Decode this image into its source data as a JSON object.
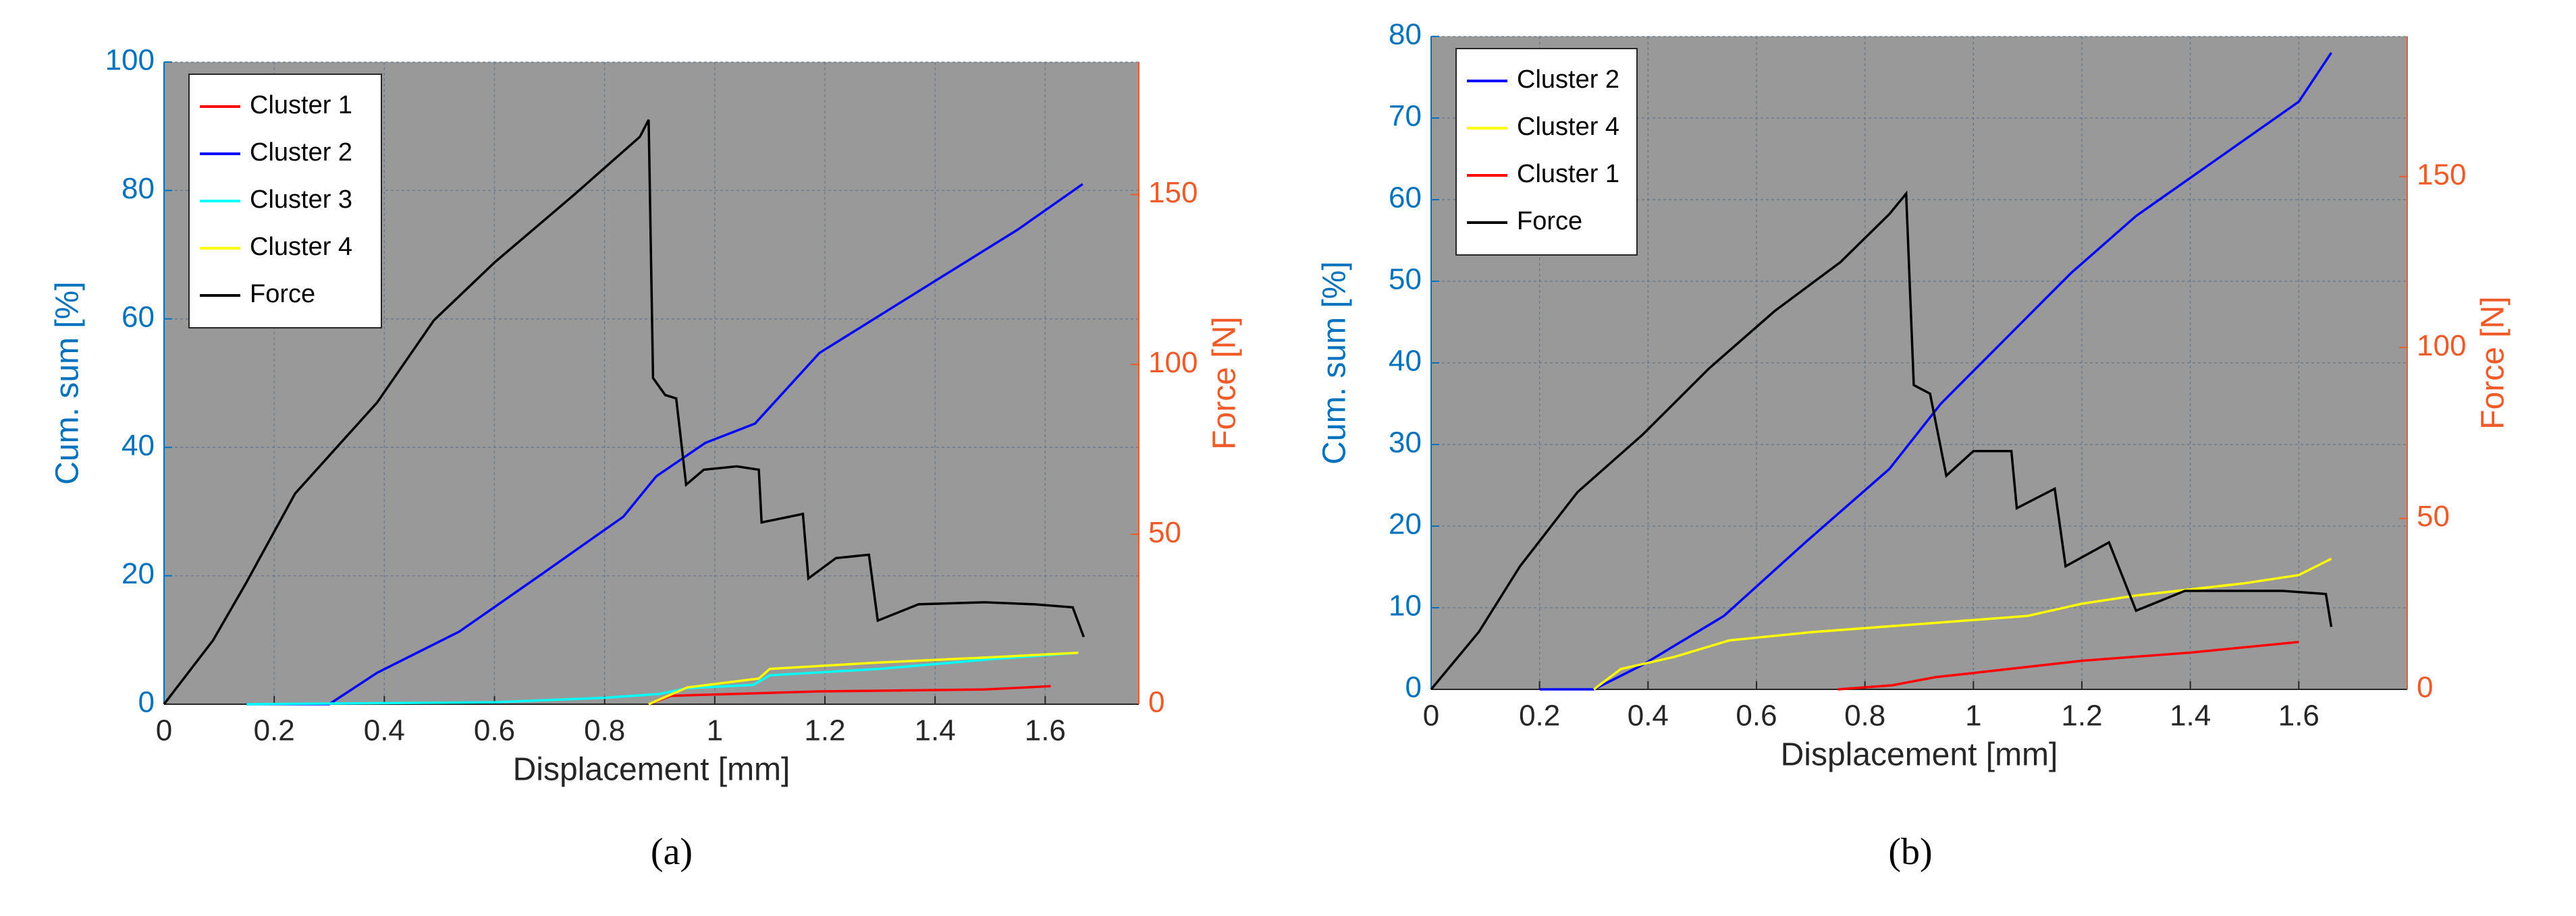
{
  "chart_data": [
    {
      "type": "line",
      "caption": "(a)",
      "xlabel": "Displacement [mm]",
      "ylabel": "Cum. sum [%]",
      "y2label": "Force [N]",
      "xlim": [
        0,
        1.77
      ],
      "xticks": [
        0,
        0.2,
        0.4,
        0.6,
        0.8,
        1,
        1.2,
        1.4,
        1.6
      ],
      "ylim": [
        0,
        100
      ],
      "yticks": [
        0,
        20,
        40,
        60,
        80,
        100
      ],
      "y2lim": [
        0,
        189
      ],
      "y2ticks": [
        0,
        50,
        100,
        150
      ],
      "grid": true,
      "legend": "upper left",
      "ylabel_color": "#0072bd",
      "y2label_color": "#f05a28",
      "series": [
        {
          "name": "Cluster 1",
          "color": "#ff0000",
          "x": [
            0.88,
            0.92,
            1.19,
            1.49,
            1.61
          ],
          "values": [
            0,
            1.3,
            2,
            2.3,
            2.8
          ]
        },
        {
          "name": "Cluster 2",
          "color": "#0000ff",
          "x": [
            0.15,
            0.3,
            0.387,
            0.536,
            0.685,
            0.834,
            0.894,
            0.983,
            1.073,
            1.19,
            1.31,
            1.43,
            1.55,
            1.668
          ],
          "values": [
            0,
            0,
            4.9,
            11.3,
            20.2,
            29.2,
            35.5,
            40.7,
            43.7,
            54.7,
            61.1,
            67.5,
            73.9,
            81
          ]
        },
        {
          "name": "Cluster 3",
          "color": "#00ffff",
          "x": [
            0.15,
            0.6,
            0.8,
            0.9,
            0.95,
            1.07,
            1.1,
            1.3,
            1.5,
            1.66
          ],
          "values": [
            0,
            0.3,
            1,
            1.6,
            2.5,
            3,
            4.5,
            5.5,
            7,
            8
          ]
        },
        {
          "name": "Cluster 4",
          "color": "#ffff00",
          "x": [
            0.88,
            0.95,
            1.08,
            1.1,
            1.3,
            1.5,
            1.66
          ],
          "values": [
            0,
            2.6,
            4,
            5.5,
            6.5,
            7.3,
            8
          ]
        },
        {
          "name": "Force",
          "color": "#000000",
          "axis": "y2",
          "x": [
            0,
            0.089,
            0.149,
            0.238,
            0.387,
            0.49,
            0.6,
            0.745,
            0.864,
            0.88,
            0.888,
            0.91,
            0.93,
            0.948,
            0.98,
            1.04,
            1.08,
            1.085,
            1.13,
            1.16,
            1.17,
            1.22,
            1.28,
            1.296,
            1.37,
            1.49,
            1.58,
            1.65,
            1.67
          ],
          "values": [
            0,
            18.8,
            35.7,
            62,
            88.8,
            113,
            130,
            150,
            167,
            172,
            96,
            91,
            90,
            64.6,
            69,
            70,
            69,
            53.5,
            55,
            56,
            37,
            43,
            44,
            24.6,
            29.4,
            30,
            29.4,
            28.5,
            19.8
          ]
        }
      ]
    },
    {
      "type": "line",
      "caption": "(b)",
      "xlabel": "Displacement [mm]",
      "ylabel": "Cum. sum [%]",
      "y2label": "Force [N]",
      "xlim": [
        0,
        1.8
      ],
      "xticks": [
        0,
        0.2,
        0.4,
        0.6,
        0.8,
        1,
        1.2,
        1.4,
        1.6
      ],
      "ylim": [
        0,
        80
      ],
      "yticks": [
        0,
        10,
        20,
        30,
        40,
        50,
        60,
        70,
        80
      ],
      "y2lim": [
        0,
        191
      ],
      "y2ticks": [
        0,
        50,
        100,
        150
      ],
      "grid": true,
      "legend": "upper left",
      "ylabel_color": "#0072bd",
      "y2label_color": "#f05a28",
      "series": [
        {
          "name": "Cluster 2",
          "color": "#0000ff",
          "x": [
            0.2,
            0.3,
            0.39,
            0.54,
            0.69,
            0.845,
            0.94,
            1.06,
            1.18,
            1.3,
            1.45,
            1.6,
            1.66
          ],
          "values": [
            0,
            0,
            3,
            9,
            18,
            27,
            35,
            43,
            51,
            58,
            65,
            72,
            78
          ]
        },
        {
          "name": "Cluster 4",
          "color": "#ffff00",
          "x": [
            0.3,
            0.35,
            0.45,
            0.55,
            0.7,
            0.9,
            1.1,
            1.2,
            1.3,
            1.5,
            1.6,
            1.66
          ],
          "values": [
            0,
            2.5,
            4,
            6,
            7,
            8,
            9,
            10.5,
            11.5,
            13,
            14,
            16
          ]
        },
        {
          "name": "Cluster 1",
          "color": "#ff0000",
          "x": [
            0.75,
            0.85,
            0.93,
            1.0,
            1.2,
            1.4,
            1.6
          ],
          "values": [
            0,
            0.5,
            1.5,
            2,
            3.5,
            4.5,
            5.8
          ]
        },
        {
          "name": "Force",
          "color": "#000000",
          "axis": "y2",
          "x": [
            0,
            0.088,
            0.164,
            0.27,
            0.39,
            0.512,
            0.633,
            0.755,
            0.845,
            0.876,
            0.89,
            0.92,
            0.95,
            1.0,
            1.07,
            1.08,
            1.15,
            1.17,
            1.25,
            1.3,
            1.39,
            1.57,
            1.65,
            1.66
          ],
          "values": [
            0,
            16.8,
            36,
            57.7,
            74.5,
            93.8,
            110.6,
            125,
            139,
            145,
            89,
            86.5,
            62.5,
            69.7,
            69.7,
            53,
            58.7,
            36,
            43,
            23,
            28.8,
            28.8,
            27.9,
            18.3
          ]
        }
      ]
    }
  ]
}
